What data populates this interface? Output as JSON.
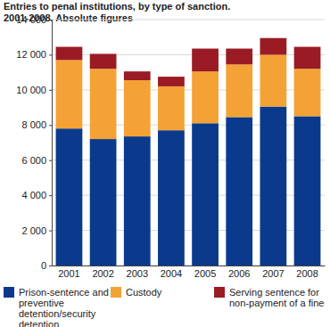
{
  "chart_data": {
    "type": "bar",
    "stacked": true,
    "title": "Entries to penal institutions, by type of sanction.",
    "subtitle": "2001-2008. Absolute figures",
    "categories": [
      "2001",
      "2002",
      "2003",
      "2004",
      "2005",
      "2006",
      "2007",
      "2008"
    ],
    "series": [
      {
        "name": "Prison-sentence and preventive detention/security detention",
        "color": "#0b3a8c",
        "values": [
          7800,
          7200,
          7350,
          7700,
          8100,
          8450,
          9050,
          8500
        ]
      },
      {
        "name": "Custody",
        "color": "#f4a236",
        "values": [
          3900,
          4000,
          3200,
          2500,
          2950,
          3000,
          2950,
          2700
        ]
      },
      {
        "name": "Serving sentence for non-payment of a fine",
        "color": "#9b1b24",
        "values": [
          750,
          850,
          500,
          550,
          1300,
          900,
          950,
          1250
        ]
      }
    ],
    "ylim": [
      0,
      14000
    ],
    "yticks": [
      0,
      {
        "value": 2000,
        "label": "2 000"
      },
      {
        "value": 4000,
        "label": "4 000"
      },
      {
        "value": 6000,
        "label": "6 000"
      },
      {
        "value": 8000,
        "label": "8 000"
      },
      {
        "value": 10000,
        "label": "10 000"
      },
      {
        "value": 12000,
        "label": "12 000"
      },
      {
        "value": 14000,
        "label": "14 000"
      }
    ],
    "grid": true
  }
}
